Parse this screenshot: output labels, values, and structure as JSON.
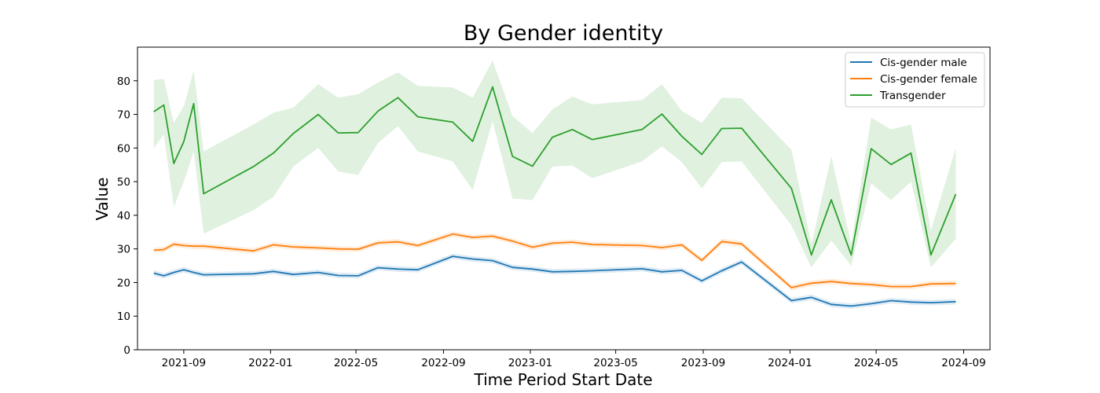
{
  "chart_data": {
    "type": "line",
    "title": "By Gender identity",
    "xlabel": "Time Period Start Date",
    "ylabel": "Value",
    "xlim": [
      "2021-06-28",
      "2024-10-08"
    ],
    "ylim": [
      0,
      90
    ],
    "x_ticks": [
      "2021-09",
      "2022-01",
      "2022-05",
      "2022-09",
      "2023-01",
      "2023-05",
      "2023-09",
      "2024-01",
      "2024-05",
      "2024-09"
    ],
    "y_ticks": [
      0,
      10,
      20,
      30,
      40,
      50,
      60,
      70,
      80
    ],
    "grid": false,
    "legend_position": "top-right",
    "x": [
      "2021-07-21",
      "2021-08-04",
      "2021-08-18",
      "2021-09-01",
      "2021-09-15",
      "2021-09-29",
      "2021-12-08",
      "2022-01-05",
      "2022-02-02",
      "2022-03-09",
      "2022-04-06",
      "2022-05-04",
      "2022-06-01",
      "2022-06-29",
      "2022-07-27",
      "2022-09-14",
      "2022-10-12",
      "2022-11-09",
      "2022-12-07",
      "2023-01-04",
      "2023-02-01",
      "2023-03-01",
      "2023-03-29",
      "2023-06-07",
      "2023-07-05",
      "2023-08-02",
      "2023-08-30",
      "2023-09-27",
      "2023-10-25",
      "2024-01-03",
      "2024-01-31",
      "2024-02-28",
      "2024-03-27",
      "2024-04-24",
      "2024-05-22",
      "2024-06-19",
      "2024-07-17",
      "2024-08-21"
    ],
    "series": [
      {
        "name": "Cis-gender male",
        "color": "#1f77b4",
        "values": [
          22.8,
          22.0,
          23.0,
          23.8,
          23.0,
          22.3,
          22.6,
          23.3,
          22.4,
          23.0,
          22.1,
          22.0,
          24.4,
          24.0,
          23.8,
          27.8,
          27.0,
          26.5,
          24.5,
          24.0,
          23.2,
          23.3,
          23.5,
          24.1,
          23.2,
          23.6,
          20.5,
          23.5,
          26.1,
          14.6,
          15.6,
          13.5,
          13.0,
          13.7,
          14.6,
          14.2,
          14.0,
          14.3
        ],
        "ci_lower": [
          21.9,
          21.2,
          22.2,
          23.0,
          22.2,
          21.5,
          21.8,
          22.5,
          21.6,
          22.2,
          21.3,
          21.2,
          23.6,
          23.2,
          23.0,
          27.0,
          26.2,
          25.7,
          23.7,
          23.2,
          22.4,
          22.5,
          22.7,
          23.3,
          22.4,
          22.8,
          19.7,
          22.7,
          25.3,
          13.8,
          14.8,
          12.7,
          12.2,
          12.9,
          13.8,
          13.4,
          13.2,
          13.5
        ],
        "ci_upper": [
          23.7,
          22.8,
          23.8,
          24.6,
          23.8,
          23.1,
          23.4,
          24.1,
          23.2,
          23.8,
          22.9,
          22.8,
          25.2,
          24.8,
          24.6,
          28.6,
          27.8,
          27.3,
          25.3,
          24.8,
          24.0,
          24.1,
          24.3,
          24.9,
          24.0,
          24.4,
          21.3,
          24.3,
          26.9,
          15.4,
          16.4,
          14.3,
          13.8,
          14.5,
          15.4,
          15.0,
          14.8,
          15.1
        ]
      },
      {
        "name": "Cis-gender female",
        "color": "#ff7f0e",
        "values": [
          29.6,
          29.8,
          31.4,
          31.0,
          30.8,
          30.8,
          29.4,
          31.2,
          30.6,
          30.3,
          30.0,
          29.9,
          31.8,
          32.1,
          31.0,
          34.4,
          33.4,
          33.8,
          32.3,
          30.5,
          31.7,
          32.0,
          31.3,
          31.0,
          30.4,
          31.2,
          26.6,
          32.2,
          31.5,
          18.5,
          19.8,
          20.3,
          19.7,
          19.4,
          18.8,
          18.8,
          19.6,
          19.7
        ],
        "ci_lower": [
          28.8,
          29.0,
          30.6,
          30.2,
          30.0,
          30.0,
          28.6,
          30.4,
          29.8,
          29.5,
          29.2,
          29.1,
          31.0,
          31.3,
          30.2,
          33.6,
          32.6,
          33.0,
          31.5,
          29.7,
          30.9,
          31.2,
          30.5,
          30.2,
          29.6,
          30.4,
          25.8,
          31.4,
          30.7,
          17.7,
          19.0,
          19.5,
          18.9,
          18.6,
          18.0,
          18.0,
          18.8,
          18.9
        ],
        "ci_upper": [
          30.4,
          30.6,
          32.2,
          31.8,
          31.6,
          31.6,
          30.2,
          32.0,
          31.4,
          31.1,
          30.8,
          30.7,
          32.6,
          32.9,
          31.8,
          35.2,
          34.2,
          34.6,
          33.1,
          31.3,
          32.5,
          32.8,
          32.1,
          31.8,
          31.2,
          32.0,
          27.4,
          33.0,
          32.3,
          19.3,
          20.6,
          21.1,
          20.5,
          20.2,
          19.6,
          19.6,
          20.4,
          20.5
        ]
      },
      {
        "name": "Transgender",
        "color": "#2ca02c",
        "values": [
          70.8,
          72.8,
          55.4,
          61.9,
          73.2,
          46.4,
          54.5,
          58.5,
          64.3,
          70.0,
          64.5,
          64.6,
          71.0,
          75.0,
          69.3,
          67.7,
          62.0,
          78.2,
          57.5,
          54.6,
          63.2,
          65.5,
          62.5,
          65.5,
          70.1,
          63.5,
          58.1,
          65.8,
          65.9,
          48.0,
          28.2,
          44.6,
          28.2,
          59.8,
          55.1,
          58.5,
          28.2,
          46.3
        ],
        "ci_lower": [
          60.0,
          64.0,
          42.5,
          50.0,
          59.0,
          34.5,
          41.5,
          45.5,
          54.5,
          60.0,
          53.0,
          52.0,
          61.5,
          66.5,
          59.0,
          56.0,
          47.5,
          68.0,
          45.0,
          44.5,
          54.5,
          54.8,
          51.0,
          56.0,
          60.5,
          55.8,
          48.0,
          55.8,
          56.0,
          37.0,
          24.5,
          32.5,
          25.0,
          49.5,
          44.5,
          50.0,
          24.5,
          33.0
        ],
        "ci_upper": [
          80.2,
          80.6,
          67.5,
          72.5,
          83.0,
          59.0,
          67.0,
          70.5,
          72.0,
          79.0,
          75.0,
          76.0,
          79.5,
          82.5,
          78.5,
          78.0,
          75.0,
          86.0,
          69.5,
          64.5,
          71.5,
          75.3,
          73.0,
          74.3,
          79.0,
          71.0,
          67.5,
          75.0,
          74.8,
          59.5,
          31.5,
          57.5,
          31.5,
          69.0,
          65.5,
          67.0,
          35.5,
          60.0
        ]
      }
    ]
  }
}
